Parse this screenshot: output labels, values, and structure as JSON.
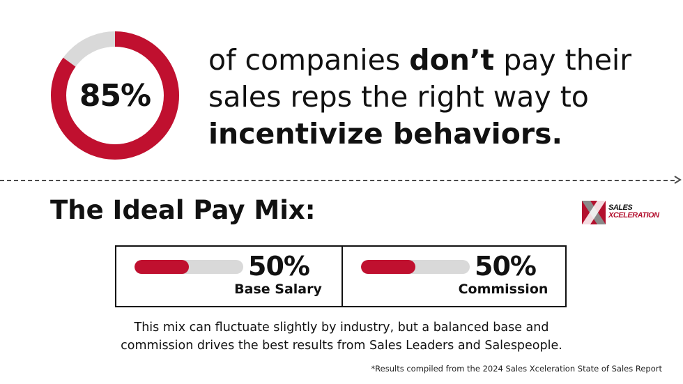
{
  "stat": {
    "value_text": "85%",
    "percent": 85,
    "colors": {
      "fill": "#c0102f",
      "track": "#d9d9d9"
    }
  },
  "headline": {
    "part1": "of companies ",
    "bold1": "don’t",
    "part2": " pay their sales reps the right way to ",
    "bold2": "incentivize behaviors."
  },
  "section_title": "The Ideal Pay Mix:",
  "logo": {
    "line1": "SALES",
    "line2": "XCELERATION",
    "colors": {
      "red": "#b3102e",
      "gray": "#8a8a8a"
    }
  },
  "pay_mix": [
    {
      "percent_text": "50%",
      "label": "Base Salary",
      "fill_fraction": 0.5
    },
    {
      "percent_text": "50%",
      "label": "Commission",
      "fill_fraction": 0.5
    }
  ],
  "note": "This mix can fluctuate slightly by industry, but a balanced base and commission drives the best results from Sales Leaders and Salespeople.",
  "source": "*Results compiled from the 2024 Sales Xceleration State of Sales Report"
}
